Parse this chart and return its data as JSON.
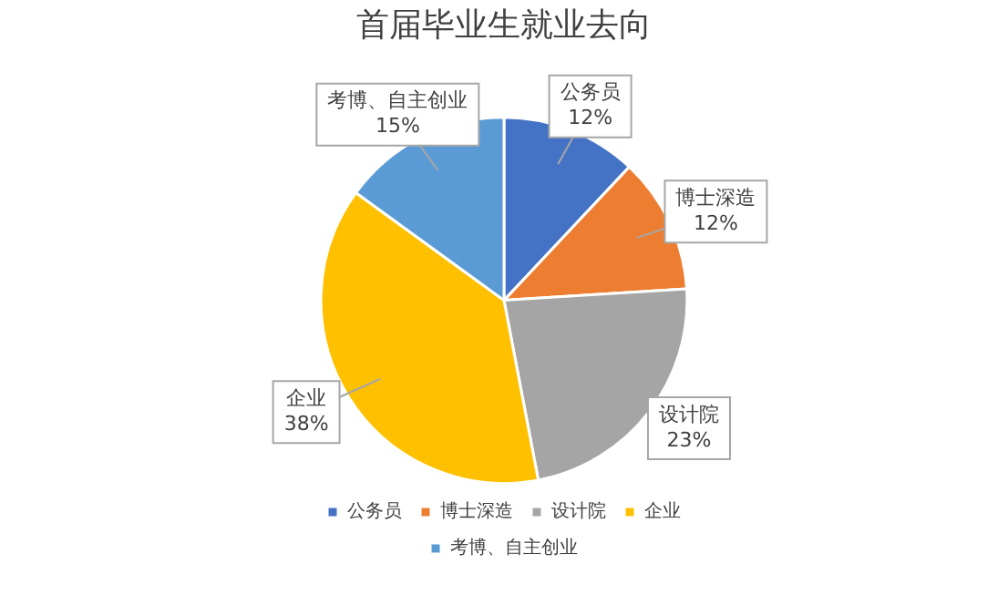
{
  "chart_data": {
    "type": "pie",
    "title": "首届毕业生就业去向",
    "categories": [
      "公务员",
      "博士深造",
      "设计院",
      "企业",
      "考博、自主创业"
    ],
    "values": [
      12,
      12,
      23,
      38,
      15
    ],
    "value_labels": [
      "12%",
      "12%",
      "23%",
      "38%",
      "15%"
    ],
    "colors": [
      "#4472c4",
      "#ed7d31",
      "#a5a5a5",
      "#ffc000",
      "#5b9bd5"
    ],
    "legend": "bottom"
  }
}
